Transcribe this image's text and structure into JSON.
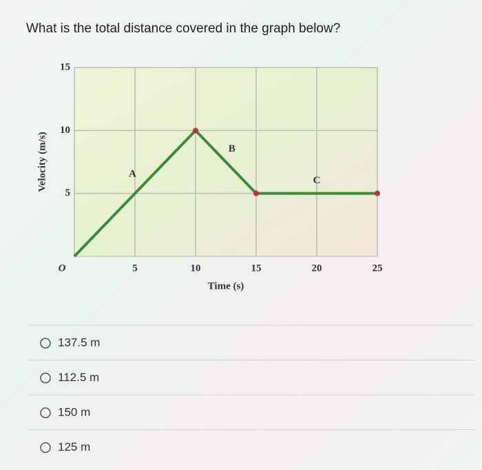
{
  "question": "What is the total distance covered in the graph below?",
  "chart_data": {
    "type": "line",
    "x": [
      0,
      10,
      15,
      25
    ],
    "series": [
      {
        "color": "#3b8c3a",
        "marker_color": "#c4303c",
        "values": [
          0,
          10,
          5,
          5
        ]
      }
    ],
    "xlim": [
      0,
      25
    ],
    "ylim": [
      0,
      15
    ],
    "xticks": [
      {
        "value": 0,
        "label": "O"
      },
      5,
      10,
      15,
      20,
      25
    ],
    "yticks": [
      5,
      10,
      15
    ],
    "grid": true,
    "xlabel": "Time (s)",
    "ylabel": "Velocity (m/s)",
    "annotations": [
      {
        "text": "A",
        "x": 4.8,
        "y": 6.5
      },
      {
        "text": "B",
        "x": 13,
        "y": 8.5
      },
      {
        "text": "C",
        "x": 20,
        "y": 6
      }
    ]
  },
  "options": [
    "137.5 m",
    "112.5 m",
    "150 m",
    "125 m"
  ]
}
